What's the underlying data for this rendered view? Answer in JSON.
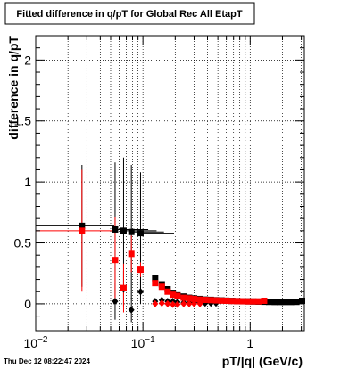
{
  "chart_data": {
    "type": "scatter",
    "title": "Fitted difference in q/pT for Global Rec All EtapT",
    "xlabel": "pT/|q| (GeV/c)",
    "ylabel": "difference in q/pT",
    "xscale": "log",
    "xlim": [
      0.01,
      3.2
    ],
    "ylim": [
      -0.22,
      2.2
    ],
    "grid": true,
    "x_ticks": [
      {
        "v": 0.01,
        "label": "10",
        "sup": "−2"
      },
      {
        "v": 0.1,
        "label": "10",
        "sup": "−1"
      },
      {
        "v": 1,
        "label": "1",
        "sup": ""
      }
    ],
    "y_ticks": [
      {
        "v": 0,
        "label": "0"
      },
      {
        "v": 0.5,
        "label": "0.5"
      },
      {
        "v": 1,
        "label": "1"
      },
      {
        "v": 1.5,
        "label": "1.5"
      },
      {
        "v": 2,
        "label": "2"
      }
    ],
    "series": [
      {
        "color": "#000000",
        "marker": "square",
        "points": [
          {
            "x": 0.027,
            "y": 0.64,
            "xerr": [
              0.009,
              0.027
            ],
            "yerr": 0.5
          },
          {
            "x": 0.055,
            "y": 0.61,
            "xerr": [
              0.054,
              0.057
            ],
            "yerr": 0.55
          },
          {
            "x": 0.066,
            "y": 0.6,
            "xerr": [
              0.065,
              0.068
            ],
            "yerr": 0.6
          },
          {
            "x": 0.078,
            "y": 0.59,
            "xerr": [
              0.077,
              0.079
            ],
            "yerr": 0.55
          },
          {
            "x": 0.095,
            "y": 0.58,
            "xerr": [
              0.09,
              0.1
            ],
            "yerr": 0.5
          },
          {
            "x": 0.13,
            "y": 0.21
          },
          {
            "x": 0.15,
            "y": 0.16
          },
          {
            "x": 0.17,
            "y": 0.12
          },
          {
            "x": 0.19,
            "y": 0.09
          },
          {
            "x": 0.21,
            "y": 0.07
          },
          {
            "x": 0.24,
            "y": 0.06
          },
          {
            "x": 0.27,
            "y": 0.05
          },
          {
            "x": 0.3,
            "y": 0.045
          },
          {
            "x": 0.34,
            "y": 0.04
          },
          {
            "x": 0.38,
            "y": 0.035
          },
          {
            "x": 0.43,
            "y": 0.033
          },
          {
            "x": 0.48,
            "y": 0.03
          },
          {
            "x": 0.54,
            "y": 0.028
          },
          {
            "x": 0.6,
            "y": 0.026
          },
          {
            "x": 0.68,
            "y": 0.024
          },
          {
            "x": 0.76,
            "y": 0.022
          },
          {
            "x": 0.85,
            "y": 0.021
          },
          {
            "x": 0.95,
            "y": 0.02
          },
          {
            "x": 1.07,
            "y": 0.019
          },
          {
            "x": 1.2,
            "y": 0.018
          },
          {
            "x": 1.35,
            "y": 0.017
          },
          {
            "x": 1.5,
            "y": 0.016
          },
          {
            "x": 1.7,
            "y": 0.015
          },
          {
            "x": 1.9,
            "y": 0.015
          },
          {
            "x": 2.1,
            "y": 0.015
          },
          {
            "x": 2.4,
            "y": 0.015
          },
          {
            "x": 2.7,
            "y": 0.016
          },
          {
            "x": 3.05,
            "y": 0.025
          }
        ]
      },
      {
        "color": "#000000",
        "marker": "diamond",
        "points": [
          {
            "x": 0.055,
            "y": 0.02,
            "yerr": 0.15
          },
          {
            "x": 0.066,
            "y": 0.12,
            "yerr": 0.15
          },
          {
            "x": 0.078,
            "y": -0.05,
            "yerr": 0.1
          },
          {
            "x": 0.095,
            "y": 0.1,
            "yerr": 0.1
          },
          {
            "x": 0.13,
            "y": 0.02
          },
          {
            "x": 0.15,
            "y": 0.03
          },
          {
            "x": 0.17,
            "y": 0.02
          },
          {
            "x": 0.19,
            "y": 0.02
          },
          {
            "x": 0.21,
            "y": 0.015
          },
          {
            "x": 0.24,
            "y": 0.01
          },
          {
            "x": 0.27,
            "y": 0.01
          },
          {
            "x": 0.3,
            "y": 0.01
          },
          {
            "x": 0.34,
            "y": 0.008
          },
          {
            "x": 0.38,
            "y": 0.005
          },
          {
            "x": 0.43,
            "y": 0.005
          },
          {
            "x": 0.48,
            "y": 0.005
          }
        ]
      },
      {
        "color": "#ff0000",
        "marker": "square",
        "points": [
          {
            "x": 0.027,
            "y": 0.6,
            "xerr": [
              0.009,
              0.027
            ],
            "yerr": 0.5
          },
          {
            "x": 0.055,
            "y": 0.36,
            "yerr": 0.35
          },
          {
            "x": 0.066,
            "y": 0.13,
            "yerr": 0.2
          },
          {
            "x": 0.078,
            "y": 0.41,
            "yerr": 0.15
          },
          {
            "x": 0.095,
            "y": 0.28,
            "yerr": 0.06
          },
          {
            "x": 0.13,
            "y": 0.17
          },
          {
            "x": 0.15,
            "y": 0.14
          },
          {
            "x": 0.17,
            "y": 0.1
          },
          {
            "x": 0.19,
            "y": 0.075
          },
          {
            "x": 0.21,
            "y": 0.065
          },
          {
            "x": 0.24,
            "y": 0.05
          },
          {
            "x": 0.27,
            "y": 0.045
          },
          {
            "x": 0.3,
            "y": 0.04
          },
          {
            "x": 0.34,
            "y": 0.035
          },
          {
            "x": 0.38,
            "y": 0.032
          },
          {
            "x": 0.43,
            "y": 0.03
          },
          {
            "x": 0.48,
            "y": 0.028
          },
          {
            "x": 0.54,
            "y": 0.026
          },
          {
            "x": 0.6,
            "y": 0.025
          },
          {
            "x": 0.68,
            "y": 0.023
          },
          {
            "x": 0.76,
            "y": 0.022
          },
          {
            "x": 0.85,
            "y": 0.021
          },
          {
            "x": 0.95,
            "y": 0.02
          },
          {
            "x": 1.07,
            "y": 0.02
          },
          {
            "x": 1.2,
            "y": 0.02
          },
          {
            "x": 1.35,
            "y": 0.025
          }
        ]
      },
      {
        "color": "#ff0000",
        "marker": "diamond",
        "points": [
          {
            "x": 0.13,
            "y": 0.0
          },
          {
            "x": 0.15,
            "y": 0.005
          },
          {
            "x": 0.17,
            "y": 0.0
          },
          {
            "x": 0.19,
            "y": -0.005
          },
          {
            "x": 0.21,
            "y": -0.005
          },
          {
            "x": 0.24,
            "y": 0.0
          },
          {
            "x": 0.27,
            "y": 0.0
          },
          {
            "x": 0.3,
            "y": 0.0
          },
          {
            "x": 0.34,
            "y": 0.0
          }
        ]
      }
    ]
  },
  "footer": {
    "timestamp": "Thu Dec 12 08:22:47 2024"
  }
}
